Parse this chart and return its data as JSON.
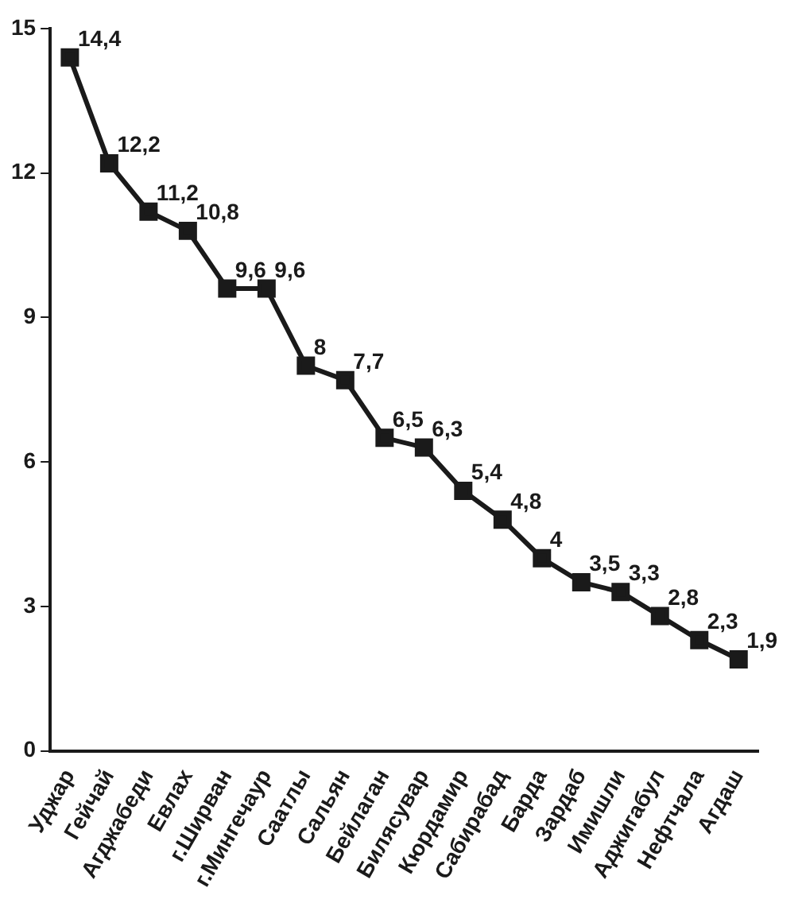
{
  "chart_data": {
    "type": "line",
    "categories": [
      "Уджар",
      "Гейчай",
      "Агджабеди",
      "Евлах",
      "г.Ширван",
      "г.Мингечаур",
      "Саатлы",
      "Сальян",
      "Бейлаган",
      "Билясувар",
      "Кюрдамир",
      "Сабирабад",
      "Барда",
      "Зардаб",
      "Имишли",
      "Аджигабул",
      "Нефтчала",
      "Агдаш"
    ],
    "values": [
      14.4,
      12.2,
      11.2,
      10.8,
      9.6,
      9.6,
      8,
      7.7,
      6.5,
      6.3,
      5.4,
      4.8,
      4,
      3.5,
      3.3,
      2.8,
      2.3,
      1.9
    ],
    "value_labels": [
      "14,4",
      "12,2",
      "11,2",
      "10,8",
      "9,6",
      "9,6",
      "8",
      "7,7",
      "6,5",
      "6,3",
      "5,4",
      "4,8",
      "4",
      "3,5",
      "3,3",
      "2,8",
      "2,3",
      "1,9"
    ],
    "color": "#1a1a1a",
    "ylim": [
      0,
      15
    ],
    "yticks": [
      0,
      3,
      6,
      9,
      12,
      15
    ],
    "grid": false,
    "legend": false,
    "marker": "square",
    "line_style": "solid"
  }
}
